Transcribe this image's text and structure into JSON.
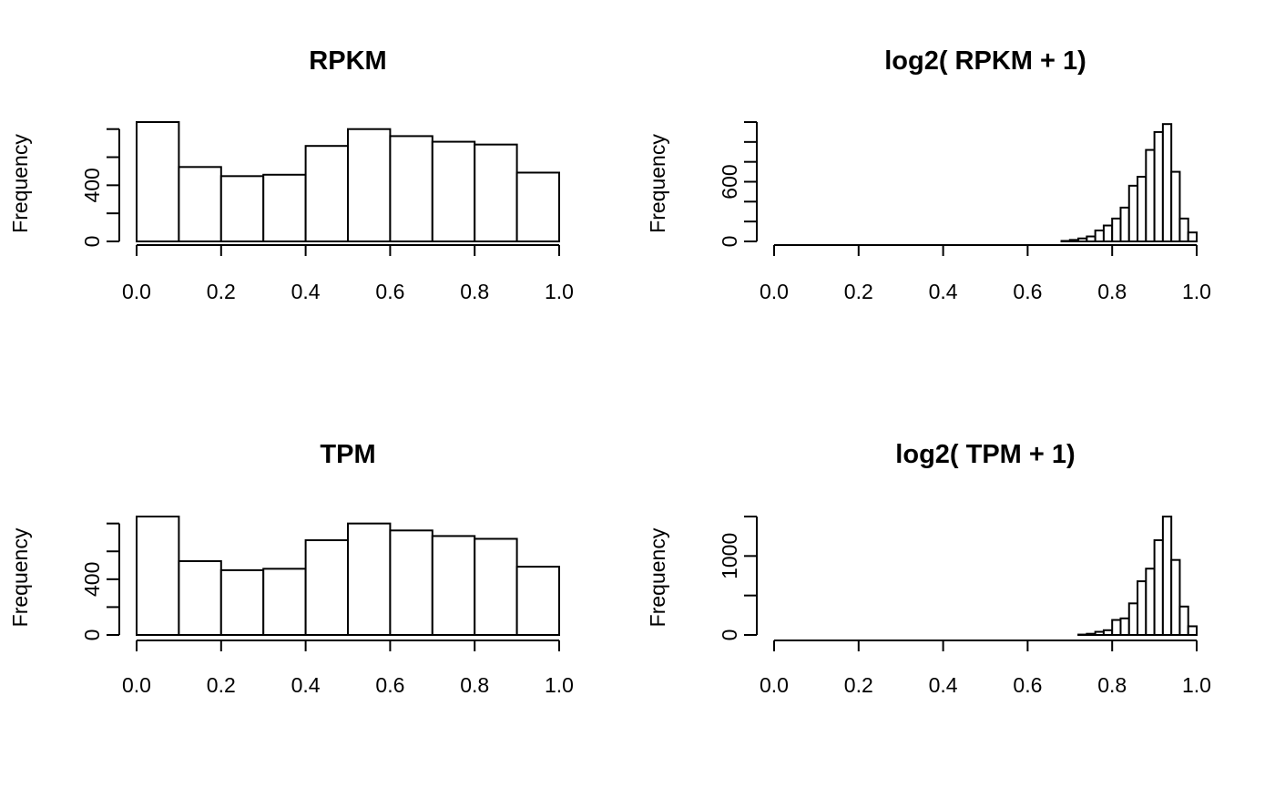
{
  "chart_data": [
    {
      "type": "bar",
      "title": "RPKM",
      "xlabel": "",
      "ylabel": "Frequency",
      "xlim": [
        0,
        1
      ],
      "x_ticks": [
        "0.0",
        "0.2",
        "0.4",
        "0.6",
        "0.8",
        "1.0"
      ],
      "y_ticks": [
        0,
        200,
        400,
        600,
        800
      ],
      "y_tick_labels": [
        "0",
        "400"
      ],
      "ylim_max": 860,
      "bin_edges": [
        0.0,
        0.1,
        0.2,
        0.3,
        0.4,
        0.5,
        0.6,
        0.7,
        0.8,
        0.9,
        1.0
      ],
      "values": [
        850,
        530,
        465,
        475,
        680,
        800,
        750,
        710,
        690,
        490
      ]
    },
    {
      "type": "bar",
      "title": "log2( RPKM + 1)",
      "xlabel": "",
      "ylabel": "Frequency",
      "xlim": [
        0,
        1
      ],
      "x_ticks": [
        "0.0",
        "0.2",
        "0.4",
        "0.6",
        "0.8",
        "1.0"
      ],
      "y_ticks": [
        0,
        200,
        400,
        600,
        800,
        1000,
        1200
      ],
      "y_tick_labels": [
        "0",
        "600"
      ],
      "ylim_max": 1200,
      "bin_start": 0.68,
      "bin_width": 0.02,
      "values": [
        5,
        15,
        30,
        50,
        110,
        160,
        230,
        340,
        560,
        650,
        920,
        1100,
        1180,
        700,
        230,
        90
      ]
    },
    {
      "type": "bar",
      "title": "TPM",
      "xlabel": "",
      "ylabel": "Frequency",
      "xlim": [
        0,
        1
      ],
      "x_ticks": [
        "0.0",
        "0.2",
        "0.4",
        "0.6",
        "0.8",
        "1.0"
      ],
      "y_ticks": [
        0,
        200,
        400,
        600,
        800
      ],
      "y_tick_labels": [
        "0",
        "400"
      ],
      "ylim_max": 850,
      "bin_edges": [
        0.0,
        0.1,
        0.2,
        0.3,
        0.4,
        0.5,
        0.6,
        0.7,
        0.8,
        0.9,
        1.0
      ],
      "values": [
        850,
        530,
        465,
        475,
        680,
        800,
        750,
        710,
        690,
        490
      ]
    },
    {
      "type": "bar",
      "title": "log2( TPM + 1)",
      "xlabel": "",
      "ylabel": "Frequency",
      "xlim": [
        0,
        1
      ],
      "x_ticks": [
        "0.0",
        "0.2",
        "0.4",
        "0.6",
        "0.8",
        "1.0"
      ],
      "y_ticks": [
        0,
        500,
        1000,
        1500
      ],
      "y_tick_labels": [
        "0",
        "1000"
      ],
      "ylim_max": 1500,
      "bin_start": 0.72,
      "bin_width": 0.02,
      "values": [
        5,
        15,
        40,
        60,
        190,
        210,
        400,
        680,
        840,
        1200,
        1500,
        950,
        360,
        110
      ]
    }
  ]
}
